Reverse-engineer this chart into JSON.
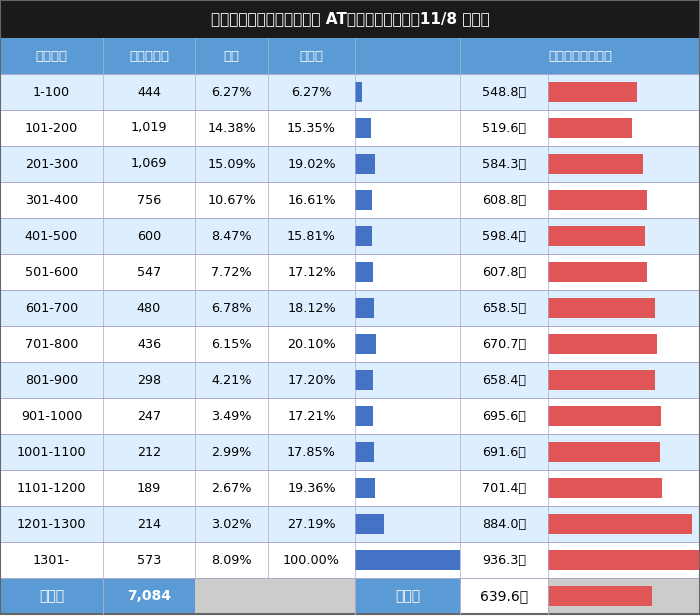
{
  "title": "【とある科学の超電磁砲】 AT間ゾーン実戦値（11/8 現在）",
  "header_bg": "#5b9bd5",
  "header_text_color": "#ffffff",
  "title_bg": "#222222",
  "title_text_color": "#ffffff",
  "row_bg_even": "#ddeeff",
  "row_bg_odd": "#ffffff",
  "footer_bg": "#5b9bd5",
  "footer_text_color": "#ffffff",
  "bar_blue": "#4472c4",
  "bar_red": "#e05555",
  "grid_color": "#aaaacc",
  "rows": [
    {
      "game": "1-100",
      "sample": "444",
      "furibun": "6.27%",
      "tosen": "6.27%",
      "tosen_val": 6.27,
      "kitai": "548.8枚",
      "kitai_val": 548.8
    },
    {
      "game": "101-200",
      "sample": "1,019",
      "furibun": "14.38%",
      "tosen": "15.35%",
      "tosen_val": 15.35,
      "kitai": "519.6枚",
      "kitai_val": 519.6
    },
    {
      "game": "201-300",
      "sample": "1,069",
      "furibun": "15.09%",
      "tosen": "19.02%",
      "tosen_val": 19.02,
      "kitai": "584.3枚",
      "kitai_val": 584.3
    },
    {
      "game": "301-400",
      "sample": "756",
      "furibun": "10.67%",
      "tosen": "16.61%",
      "tosen_val": 16.61,
      "kitai": "608.8枚",
      "kitai_val": 608.8
    },
    {
      "game": "401-500",
      "sample": "600",
      "furibun": "8.47%",
      "tosen": "15.81%",
      "tosen_val": 15.81,
      "kitai": "598.4枚",
      "kitai_val": 598.4
    },
    {
      "game": "501-600",
      "sample": "547",
      "furibun": "7.72%",
      "tosen": "17.12%",
      "tosen_val": 17.12,
      "kitai": "607.8枚",
      "kitai_val": 607.8
    },
    {
      "game": "601-700",
      "sample": "480",
      "furibun": "6.78%",
      "tosen": "18.12%",
      "tosen_val": 18.12,
      "kitai": "658.5枚",
      "kitai_val": 658.5
    },
    {
      "game": "701-800",
      "sample": "436",
      "furibun": "6.15%",
      "tosen": "20.10%",
      "tosen_val": 20.1,
      "kitai": "670.7枚",
      "kitai_val": 670.7
    },
    {
      "game": "801-900",
      "sample": "298",
      "furibun": "4.21%",
      "tosen": "17.20%",
      "tosen_val": 17.2,
      "kitai": "658.4枚",
      "kitai_val": 658.4
    },
    {
      "game": "901-1000",
      "sample": "247",
      "furibun": "3.49%",
      "tosen": "17.21%",
      "tosen_val": 17.21,
      "kitai": "695.6枚",
      "kitai_val": 695.6
    },
    {
      "game": "1001-1100",
      "sample": "212",
      "furibun": "2.99%",
      "tosen": "17.85%",
      "tosen_val": 17.85,
      "kitai": "691.6枚",
      "kitai_val": 691.6
    },
    {
      "game": "1101-1200",
      "sample": "189",
      "furibun": "2.67%",
      "tosen": "19.36%",
      "tosen_val": 19.36,
      "kitai": "701.4枚",
      "kitai_val": 701.4
    },
    {
      "game": "1201-1300",
      "sample": "214",
      "furibun": "3.02%",
      "tosen": "27.19%",
      "tosen_val": 27.19,
      "kitai": "884.0枚",
      "kitai_val": 884.0
    },
    {
      "game": "1301-",
      "sample": "573",
      "furibun": "8.09%",
      "tosen": "100.00%",
      "tosen_val": 100.0,
      "kitai": "936.3枚",
      "kitai_val": 936.3
    }
  ],
  "footer_sample": "7,084",
  "footer_kitai": "639.6枚",
  "footer_kitai_val": 639.6,
  "tosen_bar_max": 100.0,
  "kitai_bar_max": 936.3
}
